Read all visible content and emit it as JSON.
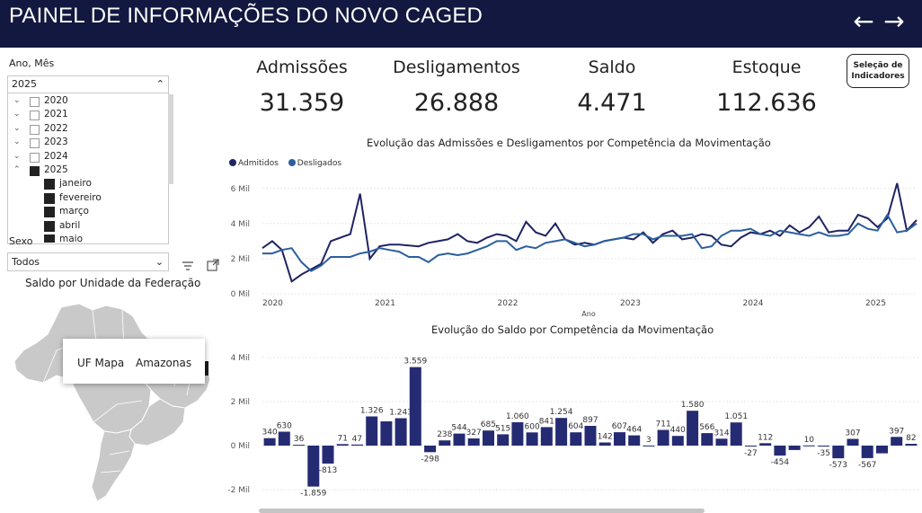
{
  "header": {
    "title": "PAINEL DE INFORMAÇÕES DO NOVO CAGED",
    "back_icon": "arrow-left-icon",
    "forward_icon": "arrow-right-icon"
  },
  "filters": {
    "period_label": "Ano, Mês",
    "period_selected": "2025",
    "years": [
      {
        "label": "2020",
        "expanded": false,
        "checked": false
      },
      {
        "label": "2021",
        "expanded": false,
        "checked": false
      },
      {
        "label": "2022",
        "expanded": false,
        "checked": false
      },
      {
        "label": "2023",
        "expanded": false,
        "checked": false
      },
      {
        "label": "2024",
        "expanded": false,
        "checked": false
      },
      {
        "label": "2025",
        "expanded": true,
        "checked": true
      }
    ],
    "months": [
      "janeiro",
      "fevereiro",
      "março",
      "abril",
      "maio"
    ],
    "sex_label": "Sexo",
    "sex_value": "Todos"
  },
  "map": {
    "title": "Saldo por Unidade da Federação",
    "tooltip_key": "UF Mapa",
    "tooltip_value": "Amazonas"
  },
  "kpis": [
    {
      "label": "Admissões",
      "value": "31.359"
    },
    {
      "label": "Desligamentos",
      "value": "26.888"
    },
    {
      "label": "Saldo",
      "value": "4.471"
    },
    {
      "label": "Estoque",
      "value": "112.636"
    }
  ],
  "indicator_button": "Seleção de Indicadores",
  "colors": {
    "header": "#12183f",
    "admitidos": "#1f2463",
    "desligados": "#2b5f9e",
    "saldo_bar": "#252b73",
    "map_fill": "#c9c9c9"
  },
  "chart_data": [
    {
      "type": "line",
      "title": "Evolução das Admissões e Desligamentos por Competência da Movimentação",
      "xlabel": "Ano",
      "ylabel": "",
      "x_ticks": [
        "2020",
        "2021",
        "2022",
        "2023",
        "2024",
        "2025"
      ],
      "y_ticks": [
        "0 Mil",
        "2 Mil",
        "4 Mil",
        "6 Mil"
      ],
      "ylim": [
        0,
        6500
      ],
      "x_start": "2020-01",
      "x_end": "2025-05",
      "legend_position": "top-left",
      "series": [
        {
          "name": "Admitidos",
          "values": [
            2600,
            3000,
            2500,
            700,
            1100,
            1400,
            1700,
            3000,
            3200,
            3400,
            5700,
            2000,
            2700,
            2800,
            2800,
            2750,
            2700,
            2900,
            3000,
            3100,
            3400,
            3000,
            2900,
            3200,
            3400,
            3300,
            3000,
            4100,
            3500,
            3300,
            4000,
            3100,
            2800,
            2900,
            2800,
            3000,
            3100,
            3200,
            3100,
            3500,
            2900,
            3400,
            3600,
            3100,
            3200,
            3400,
            3300,
            2800,
            2700,
            3200,
            3500,
            3400,
            3600,
            3300,
            3900,
            3500,
            3800,
            4400,
            3500,
            3600,
            3600,
            4500,
            4300,
            3800,
            4300,
            6300,
            3600,
            4200
          ]
        },
        {
          "name": "Desligados",
          "values": [
            2300,
            2300,
            2500,
            2600,
            1800,
            1300,
            1600,
            2100,
            2100,
            2100,
            2300,
            2400,
            2600,
            2500,
            2400,
            2100,
            2100,
            1800,
            2200,
            2300,
            2200,
            2300,
            2500,
            2700,
            3000,
            3000,
            2500,
            2700,
            2600,
            2900,
            3000,
            3100,
            2900,
            2700,
            2800,
            3000,
            3100,
            3200,
            3400,
            3400,
            3100,
            3300,
            3300,
            3300,
            3400,
            2600,
            2700,
            3300,
            3600,
            3600,
            3700,
            3400,
            3300,
            3600,
            3500,
            3400,
            3300,
            3500,
            3300,
            3300,
            3400,
            4000,
            3700,
            3600,
            4500,
            3500,
            3600,
            4000
          ]
        }
      ]
    },
    {
      "type": "bar",
      "title": "Evolução do Saldo por Competência da Movimentação",
      "xlabel": "",
      "ylabel": "",
      "y_ticks": [
        "-2 Mil",
        "0 Mil",
        "2 Mil",
        "4 Mil"
      ],
      "ylim": [
        -2200,
        4400
      ],
      "values": [
        340,
        630,
        36,
        -1859,
        -813,
        71,
        47,
        1326,
        1100,
        1243,
        3559,
        -298,
        238,
        544,
        327,
        685,
        515,
        1060,
        600,
        841,
        1254,
        604,
        897,
        142,
        607,
        464,
        3,
        711,
        440,
        1580,
        566,
        314,
        1051,
        -27,
        112,
        -454,
        -200,
        10,
        -35,
        -573,
        307,
        -567,
        -350,
        397,
        82
      ],
      "labels": [
        "340",
        "630",
        "36",
        "-1.859",
        "-813",
        "71",
        "47",
        "1.326",
        "",
        "1.243",
        "3.559",
        "-298",
        "238",
        "544",
        "327",
        "685",
        "515",
        "1.060",
        "600",
        "841",
        "1.254",
        "604",
        "897",
        "142",
        "607",
        "464",
        "3",
        "711",
        "440",
        "1.580",
        "566",
        "314",
        "1.051",
        "-27",
        "112",
        "-454",
        "",
        "10",
        "-35",
        "-573",
        "307",
        "-567",
        "",
        "397",
        "82"
      ]
    }
  ]
}
